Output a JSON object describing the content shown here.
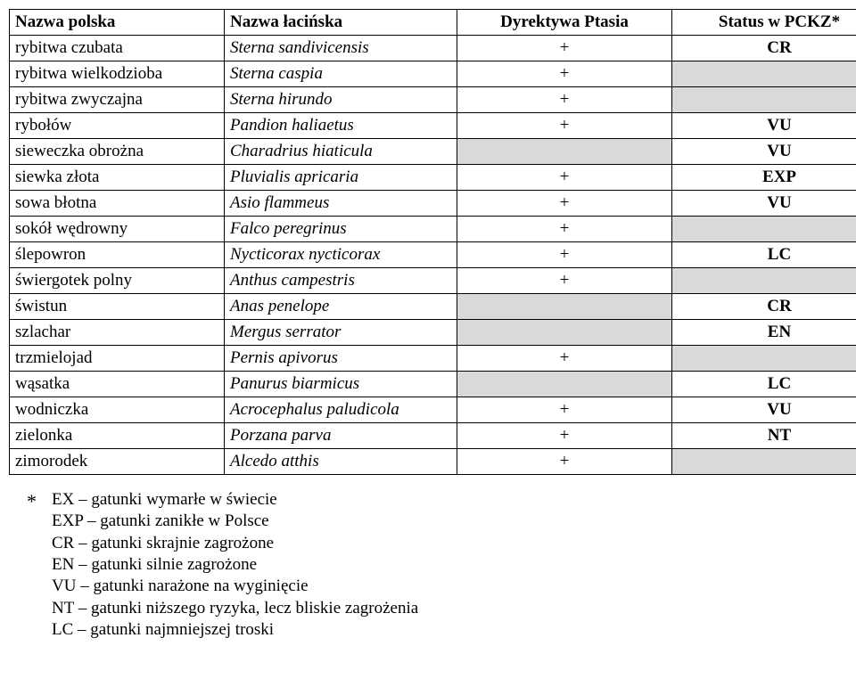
{
  "table": {
    "headers": {
      "pl": "Nazwa polska",
      "lat": "Nazwa łacińska",
      "dir": "Dyrektywa Ptasia",
      "stat": "Status w PCKZ*"
    },
    "rows": [
      {
        "pl": "rybitwa czubata",
        "lat": "Sterna sandivicensis",
        "dir": "+",
        "stat": "CR"
      },
      {
        "pl": "rybitwa wielkodzioba",
        "lat": "Sterna caspia",
        "dir": "+",
        "stat": ""
      },
      {
        "pl": "rybitwa  zwyczajna",
        "lat": "Sterna hirundo",
        "dir": "+",
        "stat": ""
      },
      {
        "pl": "rybołów",
        "lat": "Pandion haliaetus",
        "dir": "+",
        "stat": "VU"
      },
      {
        "pl": "sieweczka obrożna",
        "lat": "Charadrius hiaticula",
        "dir": "",
        "stat": "VU"
      },
      {
        "pl": "siewka złota",
        "lat": "Pluvialis apricaria",
        "dir": "+",
        "stat": "EXP"
      },
      {
        "pl": "sowa błotna",
        "lat": "Asio flammeus",
        "dir": "+",
        "stat": "VU"
      },
      {
        "pl": "sokół wędrowny",
        "lat": "Falco peregrinus",
        "dir": "+",
        "stat": ""
      },
      {
        "pl": "ślepowron",
        "lat": "Nycticorax nycticorax",
        "dir": "+",
        "stat": "LC"
      },
      {
        "pl": "świergotek polny",
        "lat": "Anthus campestris",
        "dir": "+",
        "stat": ""
      },
      {
        "pl": "świstun",
        "lat": "Anas penelope",
        "dir": "",
        "stat": "CR"
      },
      {
        "pl": "szlachar",
        "lat": "Mergus serrator",
        "dir": "",
        "stat": "EN"
      },
      {
        "pl": "trzmielojad",
        "lat": "Pernis apivorus",
        "dir": "+",
        "stat": ""
      },
      {
        "pl": "wąsatka",
        "lat": "Panurus biarmicus",
        "dir": "",
        "stat": "LC"
      },
      {
        "pl": "wodniczka",
        "lat": "Acrocephalus paludicola",
        "dir": "+",
        "stat": "VU"
      },
      {
        "pl": "zielonka",
        "lat": "Porzana parva",
        "dir": "+",
        "stat": "NT"
      },
      {
        "pl": "zimorodek",
        "lat": "Alcedo atthis",
        "dir": "+",
        "stat": ""
      }
    ]
  },
  "legend": {
    "star": "*",
    "lines": [
      "EX – gatunki wymarłe w świecie",
      "EXP – gatunki zanikłe w Polsce",
      "CR – gatunki skrajnie zagrożone",
      "EN – gatunki silnie zagrożone",
      "VU – gatunki narażone na wyginięcie",
      "NT – gatunki niższego ryzyka, lecz bliskie zagrożenia",
      "LC – gatunki najmniejszej troski"
    ]
  },
  "colors": {
    "empty_bg": "#d9d9d9",
    "text": "#000000",
    "bg": "#ffffff"
  }
}
